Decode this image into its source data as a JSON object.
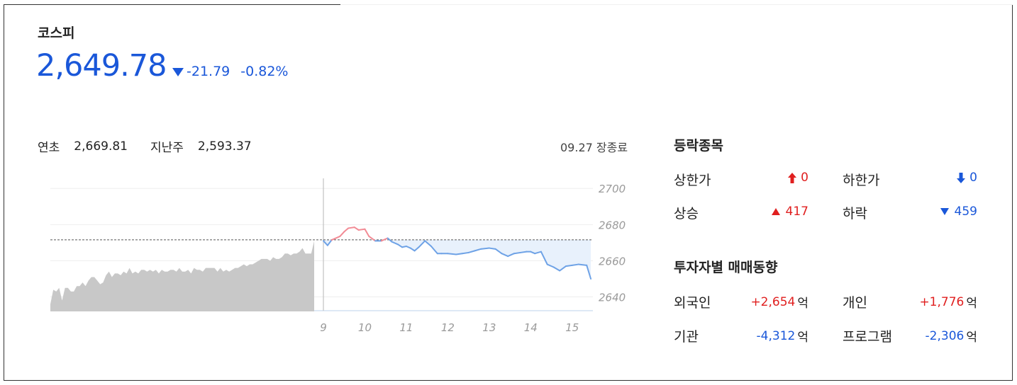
{
  "index": {
    "name": "코스피",
    "value": "2,649.78",
    "change": "-21.79",
    "change_pct": "-0.82%",
    "direction": "down"
  },
  "meta": {
    "ytd_label": "연초",
    "ytd_value": "2,669.81",
    "lastweek_label": "지난주",
    "lastweek_value": "2,593.37",
    "status": "09.27 장종료"
  },
  "breadth": {
    "title": "등락종목",
    "upper_limit_label": "상한가",
    "upper_limit_value": "0",
    "lower_limit_label": "하한가",
    "lower_limit_value": "0",
    "rise_label": "상승",
    "rise_value": "417",
    "fall_label": "하락",
    "fall_value": "459"
  },
  "investors": {
    "title": "투자자별 매매동향",
    "unit": "억",
    "foreign_label": "외국인",
    "foreign_value": "+2,654",
    "individual_label": "개인",
    "individual_value": "+1,776",
    "institution_label": "기관",
    "institution_value": "-4,312",
    "program_label": "프로그램",
    "program_value": "-2,306"
  },
  "colors": {
    "up": "#e01f1f",
    "down": "#1a57d9",
    "price": "#1a57d9",
    "history_fill": "#c8c8c8",
    "intraday_up_line": "#f28b95",
    "intraday_down_line": "#6ea2e6",
    "intraday_down_fill": "#e8f1fc"
  },
  "chart_data": {
    "type": "area",
    "y_ticks": [
      "2700",
      "2680",
      "2660",
      "2640"
    ],
    "x_ticks": [
      "9",
      "10",
      "11",
      "12",
      "13",
      "14",
      "15"
    ],
    "ylim": [
      2632,
      2704
    ],
    "reference": 2671.57,
    "history": [
      2636,
      2644,
      2643,
      2645,
      2638,
      2645,
      2645,
      2643,
      2643,
      2646,
      2646,
      2648,
      2646,
      2649,
      2651,
      2651,
      2649,
      2647,
      2648,
      2652,
      2654,
      2651,
      2653,
      2653,
      2652,
      2654,
      2653,
      2656,
      2653,
      2654,
      2653,
      2655,
      2655,
      2654,
      2655,
      2654,
      2655,
      2653,
      2655,
      2654,
      2654,
      2655,
      2655,
      2654,
      2656,
      2654,
      2654,
      2655,
      2653,
      2656,
      2655,
      2655,
      2654,
      2656,
      2656,
      2656,
      2656,
      2654,
      2656,
      2654,
      2655,
      2654,
      2655,
      2656,
      2656,
      2657,
      2658,
      2657,
      2658,
      2658,
      2659,
      2660,
      2661,
      2661,
      2661,
      2660,
      2662,
      2661,
      2661,
      2662,
      2664,
      2664,
      2663,
      2664,
      2664,
      2665,
      2667,
      2664,
      2664,
      2664,
      2671
    ],
    "intraday": [
      [
        9.0,
        2671.0
      ],
      [
        9.1,
        2668.5
      ],
      [
        9.2,
        2671.5
      ],
      [
        9.4,
        2673.5
      ],
      [
        9.5,
        2676.0
      ],
      [
        9.6,
        2678.0
      ],
      [
        9.75,
        2678.5
      ],
      [
        9.85,
        2677.0
      ],
      [
        10.0,
        2677.5
      ],
      [
        10.1,
        2673.5
      ],
      [
        10.25,
        2671.0
      ],
      [
        10.4,
        2671.0
      ],
      [
        10.55,
        2672.5
      ],
      [
        10.65,
        2670.5
      ],
      [
        10.8,
        2669.0
      ],
      [
        10.9,
        2667.5
      ],
      [
        11.0,
        2668.0
      ],
      [
        11.1,
        2667.0
      ],
      [
        11.2,
        2665.5
      ],
      [
        11.3,
        2667.5
      ],
      [
        11.45,
        2671.0
      ],
      [
        11.6,
        2668.0
      ],
      [
        11.75,
        2664.0
      ],
      [
        11.85,
        2664.0
      ],
      [
        12.0,
        2664.0
      ],
      [
        12.2,
        2663.5
      ],
      [
        12.35,
        2664.0
      ],
      [
        12.5,
        2664.5
      ],
      [
        12.65,
        2665.5
      ],
      [
        12.8,
        2666.5
      ],
      [
        13.0,
        2667.0
      ],
      [
        13.15,
        2666.5
      ],
      [
        13.3,
        2664.0
      ],
      [
        13.45,
        2662.5
      ],
      [
        13.6,
        2664.0
      ],
      [
        13.75,
        2664.5
      ],
      [
        13.9,
        2665.0
      ],
      [
        14.0,
        2665.0
      ],
      [
        14.1,
        2664.0
      ],
      [
        14.25,
        2665.0
      ],
      [
        14.4,
        2658.0
      ],
      [
        14.55,
        2656.5
      ],
      [
        14.7,
        2654.5
      ],
      [
        14.85,
        2657.0
      ],
      [
        15.0,
        2657.5
      ],
      [
        15.15,
        2658.0
      ],
      [
        15.35,
        2657.5
      ],
      [
        15.45,
        2650.0
      ]
    ]
  }
}
